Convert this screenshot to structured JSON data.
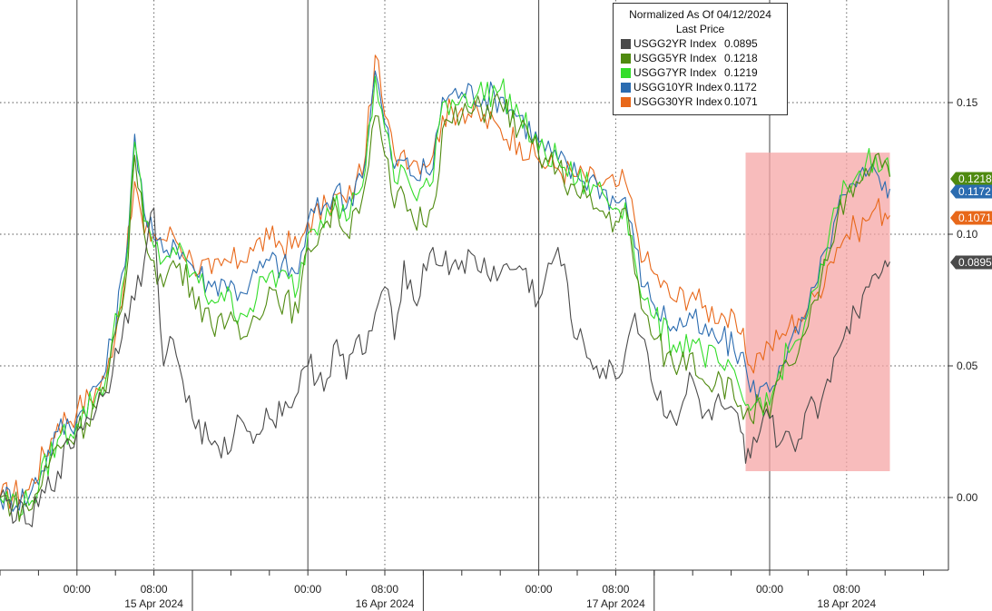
{
  "chart_data": {
    "type": "line",
    "title": "Normalized As Of 04/12/2024",
    "subtitle": "Last Price",
    "ylim": [
      -0.025,
      0.19
    ],
    "yticks": [
      0.0,
      0.05,
      0.1,
      0.15
    ],
    "ytick_labels": [
      "0.00",
      "0.05",
      "0.10",
      "0.15"
    ],
    "x_range_hours": [
      -8,
      90
    ],
    "time_labels": [
      "00:00",
      "08:00",
      "00:00",
      "08:00",
      "00:00",
      "08:00",
      "00:00",
      "08:00"
    ],
    "time_label_hours": [
      0,
      8,
      24,
      32,
      48,
      56,
      72,
      80
    ],
    "date_labels": [
      "15 Apr 2024",
      "16 Apr 2024",
      "17 Apr 2024",
      "18 Apr 2024"
    ],
    "date_label_hours": [
      8,
      32,
      56,
      80
    ],
    "highlight": {
      "x_hours": [
        69.5,
        84.5
      ],
      "y": [
        0.01,
        0.131
      ],
      "color": "#f6a5a5"
    },
    "grid": true,
    "legend_position": "top-right",
    "series": [
      {
        "name": "USGG2YR Index",
        "color": "#4a4a4a",
        "last": "0.0895",
        "x": [
          -8,
          -5,
          -2,
          0,
          3,
          5,
          6,
          7,
          8,
          9,
          10,
          12,
          14,
          15,
          17,
          18,
          20,
          23,
          24,
          26,
          27,
          28,
          29,
          30,
          31,
          32,
          33,
          34,
          35,
          37,
          38,
          40,
          44,
          46,
          48,
          50,
          52,
          54,
          56,
          57,
          58,
          59,
          60,
          62,
          64,
          65,
          67,
          69,
          69.5,
          70,
          71,
          72,
          73,
          74,
          75,
          76,
          77,
          78,
          79,
          80,
          81,
          82,
          83,
          84,
          84.5
        ],
        "y": [
          0.0,
          -0.01,
          0.01,
          0.025,
          0.04,
          0.07,
          0.075,
          0.09,
          0.11,
          0.05,
          0.06,
          0.03,
          0.02,
          0.015,
          0.03,
          0.025,
          0.03,
          0.04,
          0.05,
          0.045,
          0.06,
          0.045,
          0.06,
          0.055,
          0.07,
          0.08,
          0.06,
          0.09,
          0.075,
          0.095,
          0.088,
          0.09,
          0.085,
          0.088,
          0.075,
          0.095,
          0.06,
          0.05,
          0.045,
          0.055,
          0.07,
          0.06,
          0.04,
          0.03,
          0.045,
          0.03,
          0.035,
          0.025,
          0.013,
          0.015,
          0.025,
          0.03,
          0.02,
          0.025,
          0.022,
          0.035,
          0.03,
          0.045,
          0.055,
          0.065,
          0.07,
          0.08,
          0.085,
          0.09,
          0.0895
        ]
      },
      {
        "name": "USGG5YR Index",
        "color": "#4f8a10",
        "last": "0.1218",
        "x": [
          -8,
          -5,
          -2,
          0,
          3,
          5,
          6,
          7,
          8,
          9,
          10,
          12,
          14,
          15,
          17,
          18,
          20,
          23,
          24,
          26,
          27,
          28,
          29,
          30,
          31,
          32,
          33,
          34,
          35,
          37,
          38,
          40,
          44,
          46,
          48,
          50,
          52,
          54,
          56,
          57,
          58,
          59,
          60,
          62,
          64,
          65,
          67,
          69,
          69.5,
          70,
          71,
          72,
          73,
          74,
          75,
          76,
          77,
          78,
          79,
          80,
          81,
          82,
          83,
          84,
          84.5
        ],
        "y": [
          0.0,
          -0.005,
          0.02,
          0.025,
          0.04,
          0.08,
          0.13,
          0.1,
          0.09,
          0.08,
          0.09,
          0.08,
          0.065,
          0.07,
          0.06,
          0.065,
          0.08,
          0.07,
          0.095,
          0.105,
          0.11,
          0.1,
          0.11,
          0.12,
          0.145,
          0.13,
          0.11,
          0.115,
          0.105,
          0.11,
          0.14,
          0.145,
          0.15,
          0.14,
          0.13,
          0.125,
          0.115,
          0.11,
          0.105,
          0.11,
          0.085,
          0.07,
          0.06,
          0.05,
          0.055,
          0.045,
          0.045,
          0.035,
          0.032,
          0.03,
          0.035,
          0.03,
          0.045,
          0.05,
          0.055,
          0.065,
          0.075,
          0.09,
          0.105,
          0.115,
          0.12,
          0.125,
          0.13,
          0.128,
          0.1218
        ]
      },
      {
        "name": "USGG7YR Index",
        "color": "#33dd2a",
        "last": "0.1219",
        "x": [
          -8,
          -5,
          -2,
          0,
          3,
          5,
          6,
          7,
          8,
          9,
          10,
          12,
          14,
          15,
          17,
          18,
          20,
          23,
          24,
          26,
          27,
          28,
          29,
          30,
          31,
          32,
          33,
          34,
          35,
          37,
          38,
          40,
          44,
          46,
          48,
          50,
          52,
          54,
          56,
          57,
          58,
          59,
          60,
          62,
          64,
          65,
          67,
          69,
          69.5,
          70,
          71,
          72,
          73,
          74,
          75,
          76,
          77,
          78,
          79,
          80,
          81,
          82,
          83,
          84,
          84.5
        ],
        "y": [
          0.0,
          -0.003,
          0.022,
          0.028,
          0.045,
          0.085,
          0.135,
          0.105,
          0.095,
          0.09,
          0.095,
          0.085,
          0.075,
          0.078,
          0.07,
          0.072,
          0.085,
          0.08,
          0.1,
          0.11,
          0.115,
          0.105,
          0.115,
          0.125,
          0.16,
          0.14,
          0.12,
          0.125,
          0.115,
          0.12,
          0.15,
          0.152,
          0.155,
          0.145,
          0.132,
          0.128,
          0.12,
          0.118,
          0.11,
          0.112,
          0.09,
          0.075,
          0.068,
          0.058,
          0.06,
          0.055,
          0.05,
          0.04,
          0.035,
          0.033,
          0.038,
          0.035,
          0.048,
          0.055,
          0.06,
          0.07,
          0.08,
          0.095,
          0.11,
          0.118,
          0.122,
          0.127,
          0.13,
          0.128,
          0.1219
        ]
      },
      {
        "name": "USGG10YR Index",
        "color": "#2b6cb0",
        "last": "0.1172",
        "x": [
          -8,
          -5,
          -2,
          0,
          3,
          5,
          6,
          7,
          8,
          9,
          10,
          12,
          14,
          15,
          17,
          18,
          20,
          23,
          24,
          26,
          27,
          28,
          29,
          30,
          31,
          32,
          33,
          34,
          35,
          37,
          38,
          40,
          44,
          46,
          48,
          50,
          52,
          54,
          56,
          57,
          58,
          59,
          60,
          62,
          64,
          65,
          67,
          69,
          69.5,
          70,
          71,
          72,
          73,
          74,
          75,
          76,
          77,
          78,
          79,
          80,
          81,
          82,
          83,
          84,
          84.5
        ],
        "y": [
          0.0,
          0.0,
          0.025,
          0.03,
          0.048,
          0.088,
          0.138,
          0.108,
          0.098,
          0.093,
          0.098,
          0.088,
          0.08,
          0.083,
          0.078,
          0.082,
          0.09,
          0.085,
          0.105,
          0.112,
          0.118,
          0.11,
          0.12,
          0.128,
          0.162,
          0.142,
          0.125,
          0.128,
          0.122,
          0.125,
          0.152,
          0.154,
          0.152,
          0.145,
          0.135,
          0.128,
          0.122,
          0.12,
          0.112,
          0.114,
          0.095,
          0.08,
          0.073,
          0.065,
          0.068,
          0.062,
          0.06,
          0.055,
          0.05,
          0.04,
          0.042,
          0.04,
          0.05,
          0.058,
          0.062,
          0.072,
          0.082,
          0.095,
          0.108,
          0.115,
          0.118,
          0.122,
          0.124,
          0.12,
          0.1172
        ]
      },
      {
        "name": "USGG30YR Index",
        "color": "#e8681a",
        "last": "0.1071",
        "x": [
          -8,
          -5,
          -2,
          0,
          3,
          5,
          6,
          7,
          8,
          9,
          10,
          12,
          14,
          15,
          17,
          18,
          20,
          23,
          24,
          26,
          27,
          28,
          29,
          30,
          31,
          32,
          33,
          34,
          35,
          37,
          38,
          40,
          44,
          46,
          48,
          50,
          52,
          54,
          56,
          57,
          58,
          59,
          60,
          62,
          64,
          65,
          67,
          69,
          69.5,
          70,
          71,
          72,
          73,
          74,
          75,
          76,
          77,
          78,
          79,
          80,
          81,
          82,
          83,
          84,
          84.5
        ],
        "y": [
          0.0,
          0.003,
          0.028,
          0.033,
          0.045,
          0.085,
          0.12,
          0.1,
          0.1,
          0.098,
          0.1,
          0.09,
          0.085,
          0.088,
          0.09,
          0.095,
          0.098,
          0.095,
          0.105,
          0.11,
          0.115,
          0.112,
          0.12,
          0.13,
          0.168,
          0.145,
          0.13,
          0.132,
          0.128,
          0.13,
          0.145,
          0.148,
          0.14,
          0.135,
          0.128,
          0.125,
          0.122,
          0.12,
          0.118,
          0.12,
          0.105,
          0.09,
          0.085,
          0.075,
          0.078,
          0.072,
          0.07,
          0.062,
          0.055,
          0.05,
          0.055,
          0.058,
          0.06,
          0.065,
          0.068,
          0.072,
          0.078,
          0.088,
          0.095,
          0.1,
          0.102,
          0.105,
          0.11,
          0.108,
          0.1071
        ]
      }
    ]
  }
}
